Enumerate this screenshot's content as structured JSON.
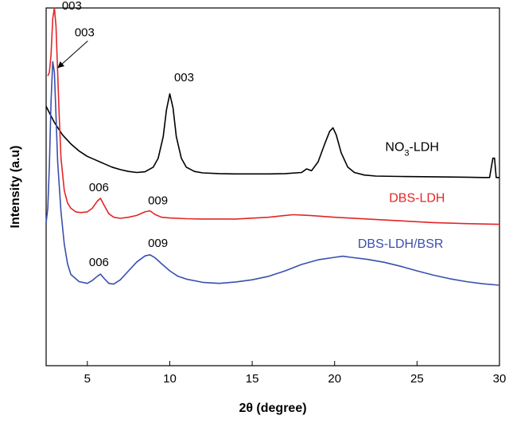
{
  "chart_data": {
    "type": "line",
    "title": "",
    "xlabel": "2θ (degree)",
    "ylabel": "Intensity (a.u)",
    "xlim": [
      2.5,
      30
    ],
    "ylim": [
      0,
      100
    ],
    "x_ticks": [
      5,
      10,
      15,
      20,
      25,
      30
    ],
    "grid": false,
    "legend": "labels placed beside curves",
    "series": [
      {
        "name": "NO3-LDH",
        "label_parts": [
          "NO",
          "3",
          "-LDH"
        ],
        "color": "#000000",
        "x": [
          2.5,
          3.0,
          3.5,
          4.0,
          4.5,
          5.0,
          5.5,
          6.0,
          6.5,
          7.0,
          7.5,
          8.0,
          8.5,
          9.0,
          9.3,
          9.6,
          9.8,
          10.0,
          10.2,
          10.4,
          10.7,
          11.0,
          11.5,
          12.0,
          13.0,
          14.0,
          15.0,
          16.0,
          17.0,
          18.0,
          18.3,
          18.6,
          19.0,
          19.4,
          19.7,
          19.9,
          20.1,
          20.4,
          20.8,
          21.2,
          21.8,
          22.5,
          24.0,
          26.0,
          28.0,
          29.0,
          29.4,
          29.6,
          29.7,
          29.8,
          30.0
        ],
        "values": [
          72.5,
          68.0,
          64.5,
          62.0,
          60.0,
          58.5,
          57.5,
          56.5,
          55.5,
          54.8,
          54.3,
          54.0,
          54.2,
          55.5,
          58.0,
          64.0,
          71.5,
          76.0,
          72.0,
          64.0,
          58.0,
          55.5,
          54.3,
          53.9,
          53.7,
          53.6,
          53.6,
          53.6,
          53.7,
          54.0,
          55.0,
          54.5,
          57.0,
          62.0,
          65.5,
          66.5,
          64.5,
          59.5,
          55.5,
          54.0,
          53.3,
          53.0,
          52.9,
          52.8,
          52.7,
          52.6,
          52.6,
          58.0,
          58.0,
          52.6,
          52.6
        ]
      },
      {
        "name": "DBS-LDH",
        "color": "#e32626",
        "x": [
          2.6,
          2.7,
          2.8,
          2.9,
          3.0,
          3.1,
          3.2,
          3.3,
          3.4,
          3.6,
          3.8,
          4.0,
          4.3,
          4.6,
          5.0,
          5.3,
          5.6,
          5.8,
          6.0,
          6.3,
          6.6,
          7.0,
          7.5,
          8.0,
          8.5,
          8.8,
          9.1,
          9.5,
          10.0,
          11.0,
          12.0,
          14.0,
          16.0,
          17.0,
          17.5,
          18.5,
          20.0,
          22.0,
          24.0,
          26.0,
          28.0,
          30.0
        ],
        "values": [
          81.0,
          82.0,
          87.0,
          97.0,
          100.0,
          95.0,
          82.0,
          69.0,
          58.0,
          49.0,
          45.5,
          44.0,
          43.0,
          42.8,
          43.0,
          44.0,
          46.0,
          46.8,
          45.0,
          42.5,
          41.5,
          41.2,
          41.5,
          42.0,
          43.0,
          43.3,
          42.3,
          41.5,
          41.3,
          41.1,
          41.0,
          41.0,
          41.5,
          42.0,
          42.2,
          42.0,
          41.5,
          41.0,
          40.5,
          40.0,
          39.7,
          39.5
        ]
      },
      {
        "name": "DBS-LDH/BSR",
        "color": "#3a4fae",
        "x": [
          2.5,
          2.6,
          2.7,
          2.8,
          2.9,
          3.0,
          3.1,
          3.2,
          3.4,
          3.6,
          3.8,
          4.0,
          4.5,
          5.0,
          5.3,
          5.6,
          5.8,
          6.0,
          6.3,
          6.6,
          7.0,
          7.5,
          8.0,
          8.5,
          8.8,
          9.1,
          9.5,
          10.0,
          10.5,
          11.0,
          12.0,
          13.0,
          14.0,
          15.0,
          16.0,
          17.0,
          18.0,
          19.0,
          20.0,
          20.5,
          21.0,
          22.0,
          23.0,
          24.0,
          25.0,
          26.0,
          27.0,
          28.0,
          29.0,
          30.0
        ],
        "values": [
          40.0,
          44.0,
          56.0,
          74.0,
          85.0,
          82.0,
          70.0,
          57.0,
          43.0,
          34.0,
          28.5,
          25.5,
          23.5,
          23.0,
          23.8,
          25.0,
          25.6,
          24.5,
          23.0,
          22.8,
          24.0,
          26.5,
          29.0,
          30.7,
          31.0,
          30.2,
          28.5,
          26.5,
          25.0,
          24.2,
          23.3,
          23.0,
          23.4,
          24.0,
          25.0,
          26.5,
          28.3,
          29.6,
          30.3,
          30.6,
          30.3,
          29.7,
          28.9,
          27.8,
          26.5,
          25.3,
          24.3,
          23.5,
          22.9,
          22.5
        ]
      }
    ],
    "annotations": [
      {
        "text": "003",
        "series": "DBS-LDH",
        "x": 3.0,
        "y": 100.0,
        "color": "#000000"
      },
      {
        "text": "003",
        "series": "DBS-LDH/BSR",
        "x": 3.0,
        "y": 85.0,
        "color": "#000000",
        "arrow": true
      },
      {
        "text": "003",
        "series": "NO3-LDH",
        "x": 10.0,
        "y": 76.0,
        "color": "#000000"
      },
      {
        "text": "006",
        "series": "DBS-LDH",
        "x": 5.8,
        "y": 46.8,
        "color": "#000000"
      },
      {
        "text": "009",
        "series": "DBS-LDH",
        "x": 8.8,
        "y": 43.3,
        "color": "#000000"
      },
      {
        "text": "006",
        "series": "DBS-LDH/BSR",
        "x": 5.8,
        "y": 25.6,
        "color": "#000000"
      },
      {
        "text": "009",
        "series": "DBS-LDH/BSR",
        "x": 8.8,
        "y": 31.0,
        "color": "#000000"
      }
    ]
  }
}
